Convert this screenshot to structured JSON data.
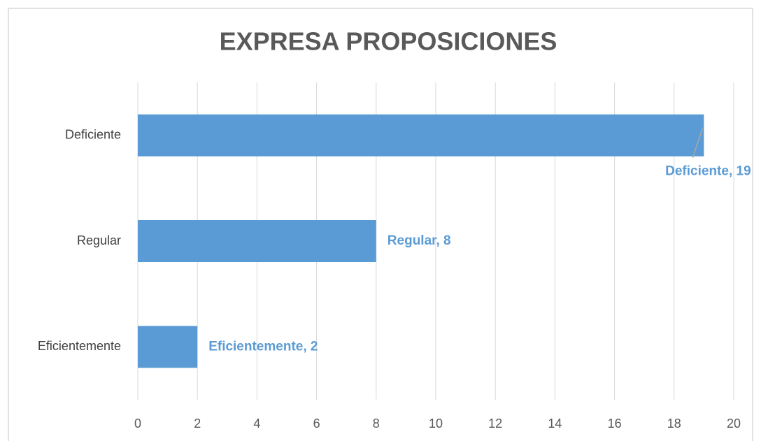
{
  "chart_data": {
    "type": "hbar",
    "title": "EXPRESA PROPOSICIONES",
    "categories": [
      "Deficiente",
      "Regular",
      "Eficientemente"
    ],
    "values": [
      19,
      8,
      2
    ],
    "value_labels": [
      "Deficiente, 19",
      "Regular, 8",
      "Eficientemente, 2"
    ],
    "color": "#5b9bd5",
    "xlim": [
      0,
      20
    ],
    "xticks": [
      0,
      2,
      4,
      6,
      8,
      10,
      12,
      14,
      16,
      18,
      20
    ],
    "grid": true
  }
}
